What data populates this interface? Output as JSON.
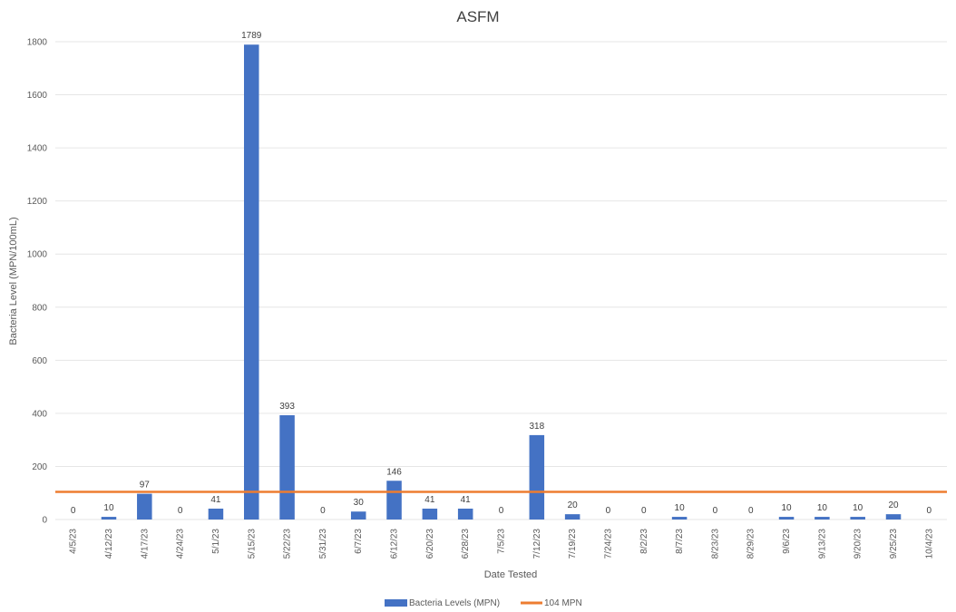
{
  "chart_data": {
    "type": "bar",
    "title": "ASFM",
    "xlabel": "Date Tested",
    "ylabel": "Bacteria Level (MPN/100mL)",
    "ylim": [
      0,
      1800
    ],
    "yticks": [
      0,
      200,
      400,
      600,
      800,
      1000,
      1200,
      1400,
      1600,
      1800
    ],
    "grid": true,
    "legend_position": "bottom",
    "categories": [
      "4/5/23",
      "4/12/23",
      "4/17/23",
      "4/24/23",
      "5/1/23",
      "5/15/23",
      "5/22/23",
      "5/31/23",
      "6/7/23",
      "6/12/23",
      "6/20/23",
      "6/28/23",
      "7/5/23",
      "7/12/23",
      "7/19/23",
      "7/24/23",
      "8/2/23",
      "8/7/23",
      "8/23/23",
      "8/29/23",
      "9/6/23",
      "9/13/23",
      "9/20/23",
      "9/25/23",
      "10/4/23"
    ],
    "series": [
      {
        "name": "Bacteria Levels (MPN)",
        "type": "bar",
        "color": "#4472C4",
        "values": [
          0,
          10,
          97,
          0,
          41,
          1789,
          393,
          0,
          30,
          146,
          41,
          41,
          0,
          318,
          20,
          0,
          0,
          10,
          0,
          0,
          10,
          10,
          10,
          20,
          0
        ]
      },
      {
        "name": "104 MPN",
        "type": "line",
        "color": "#ED7D31",
        "values": [
          104,
          104,
          104,
          104,
          104,
          104,
          104,
          104,
          104,
          104,
          104,
          104,
          104,
          104,
          104,
          104,
          104,
          104,
          104,
          104,
          104,
          104,
          104,
          104,
          104
        ]
      }
    ]
  }
}
